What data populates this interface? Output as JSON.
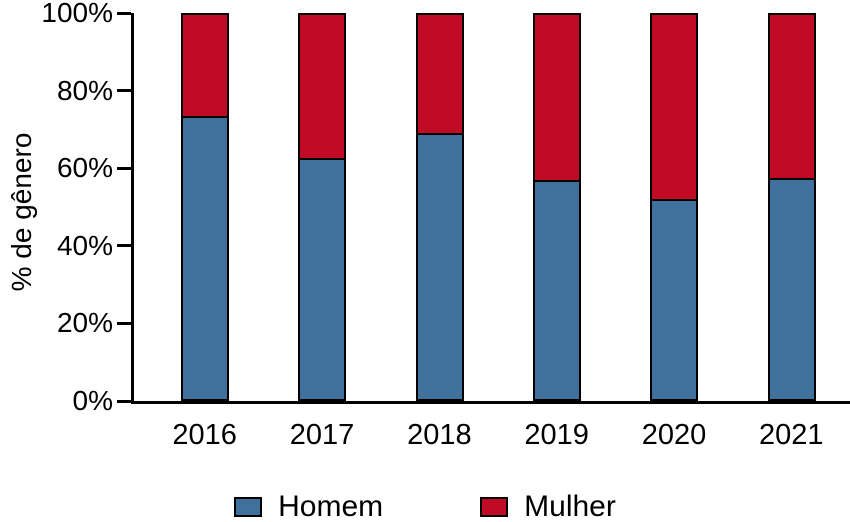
{
  "chart_data": {
    "type": "bar",
    "stacked": true,
    "normalized_100": true,
    "title": "",
    "xlabel": "",
    "ylabel": "% de gênero",
    "categories": [
      "2016",
      "2017",
      "2018",
      "2019",
      "2020",
      "2021"
    ],
    "series": [
      {
        "name": "Homem",
        "color": "#40719C",
        "values": [
          73,
          62,
          68.5,
          56.5,
          51.5,
          57
        ]
      },
      {
        "name": "Mulher",
        "color": "#C00A26",
        "values": [
          27,
          38,
          31.5,
          43.5,
          48.5,
          43
        ]
      }
    ],
    "ylim": [
      0,
      100
    ],
    "y_ticks": [
      {
        "value": 0,
        "label": "0%"
      },
      {
        "value": 20,
        "label": "20%"
      },
      {
        "value": 40,
        "label": "40%"
      },
      {
        "value": 60,
        "label": "60%"
      },
      {
        "value": 80,
        "label": "80%"
      },
      {
        "value": 100,
        "label": "100%"
      }
    ],
    "grid": false,
    "legend_position": "bottom"
  },
  "colors": {
    "background": "#ffffff",
    "axis": "#000000",
    "bar_border": "#000000",
    "text": "#000000",
    "homem_blue": "#40719C",
    "mulher_red": "#C00A26"
  }
}
